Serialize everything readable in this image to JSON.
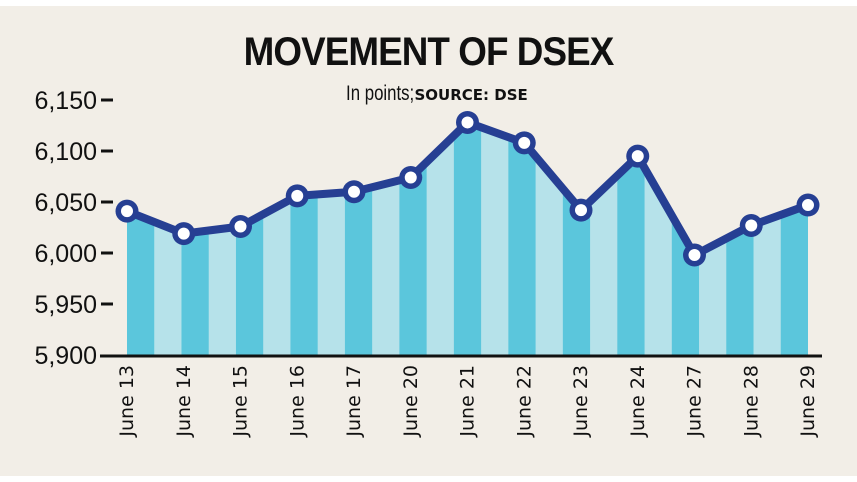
{
  "chart": {
    "title": "MOVEMENT OF DSEX",
    "subtitle_unit": "In points;",
    "subtitle_source": "SOURCE: DSE"
  },
  "colors": {
    "background": "#f2eee7",
    "stripe_dark": "#5bc6dc",
    "stripe_light": "#b6e2ea",
    "line": "#263f93",
    "marker_fill": "#ffffff",
    "axis": "#111111"
  },
  "chart_data": {
    "type": "line",
    "title": "MOVEMENT OF DSEX",
    "subtitle": "In points; SOURCE: DSE",
    "xlabel": "",
    "ylabel": "In points",
    "categories": [
      "June 13",
      "June 14",
      "June 15",
      "June 16",
      "June 17",
      "June 20",
      "June 21",
      "June 22",
      "June 23",
      "June 24",
      "June 27",
      "June 28",
      "June 29"
    ],
    "values": [
      6041,
      6019,
      6026,
      6056,
      6060,
      6074,
      6128,
      6108,
      6042,
      6095,
      5998,
      6027,
      6047
    ],
    "ylim": [
      5900,
      6150
    ],
    "yticks": [
      5900,
      5950,
      6000,
      6050,
      6100,
      6150
    ],
    "ytick_labels": [
      "5,900",
      "5,950",
      "6,000",
      "6,050",
      "6,100",
      "6,150"
    ],
    "grid": false,
    "legend": null,
    "fill_under_line": "alternating vertical stripes"
  }
}
